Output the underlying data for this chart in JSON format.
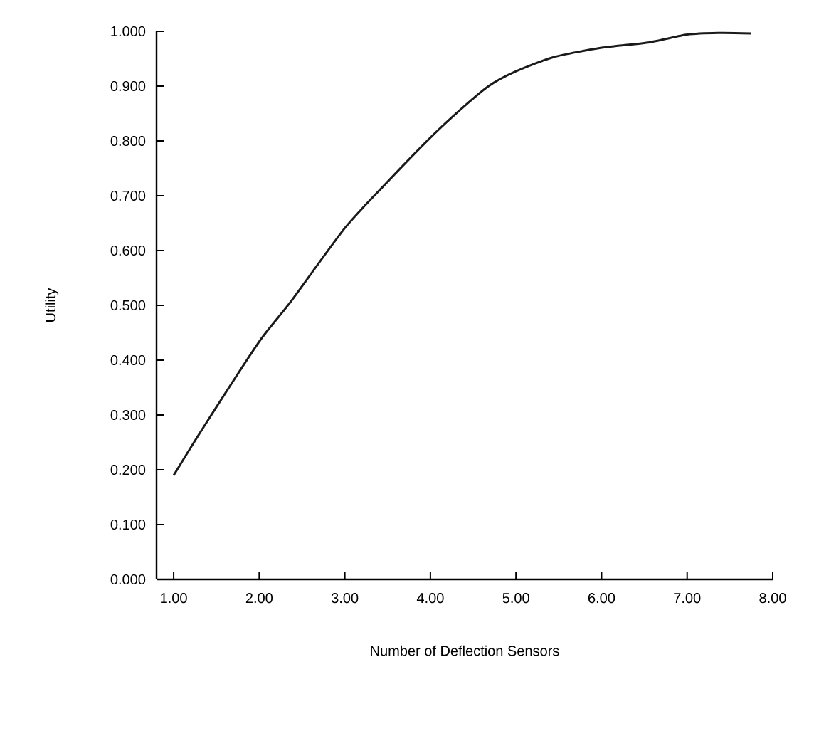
{
  "chart_data": {
    "type": "line",
    "xlabel": "Number of Deflection Sensors",
    "ylabel": "Utility",
    "x": [
      1.0,
      1.35,
      2.0,
      2.35,
      3.0,
      3.46,
      4.0,
      4.35,
      4.68,
      5.0,
      5.44,
      6.0,
      6.56,
      7.0,
      7.36,
      7.75
    ],
    "series": [
      {
        "color": "#1a1a1a",
        "values": [
          0.19,
          0.278,
          0.434,
          0.503,
          0.641,
          0.719,
          0.806,
          0.857,
          0.9,
          0.927,
          0.953,
          0.97,
          0.98,
          0.994,
          0.997,
          0.996
        ]
      }
    ],
    "xlim": [
      0.8,
      8.0
    ],
    "ylim": [
      0,
      1.0
    ],
    "xticks": [
      {
        "value": 1,
        "label": "1.00"
      },
      {
        "value": 2,
        "label": "2.00"
      },
      {
        "value": 3,
        "label": "3.00"
      },
      {
        "value": 4,
        "label": "4.00"
      },
      {
        "value": 5,
        "label": "5.00"
      },
      {
        "value": 6,
        "label": "6.00"
      },
      {
        "value": 7,
        "label": "7.00"
      },
      {
        "value": 8,
        "label": "8.00"
      }
    ],
    "yticks": [
      {
        "value": 0,
        "label": "0.000"
      },
      {
        "value": 0.1,
        "label": "0.100"
      },
      {
        "value": 0.2,
        "label": "0.200"
      },
      {
        "value": 0.3,
        "label": "0.300"
      },
      {
        "value": 0.4,
        "label": "0.400"
      },
      {
        "value": 0.5,
        "label": "0.500"
      },
      {
        "value": 0.6,
        "label": "0.600"
      },
      {
        "value": 0.7,
        "label": "0.700"
      },
      {
        "value": 0.8,
        "label": "0.800"
      },
      {
        "value": 0.9,
        "label": "0.900"
      },
      {
        "value": 1.0,
        "label": "1.000"
      }
    ],
    "grid": false,
    "legend": false,
    "marker": "none",
    "line_style": "solid"
  }
}
